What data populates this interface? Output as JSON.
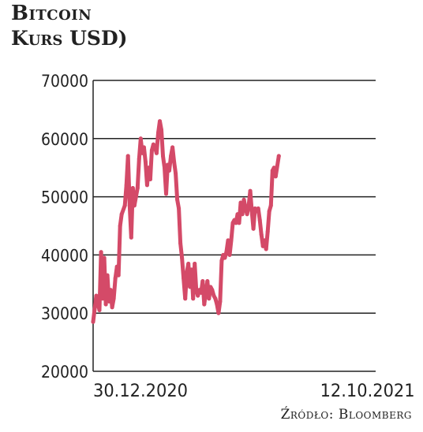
{
  "title": "Bitcoin",
  "subtitle": "Kurs USD)",
  "source": "Źródło: Bloomberg",
  "colors": {
    "line": "#d44a68",
    "grid": "#222222",
    "text": "#222222"
  },
  "chart_data": {
    "type": "line",
    "title": "Bitcoin",
    "subtitle": "Kurs USD)",
    "xlabel": "",
    "ylabel": "",
    "ylim": [
      20000,
      70000
    ],
    "yticks": [
      "20000",
      "30000",
      "40000",
      "50000",
      "60000",
      "70000"
    ],
    "xticks": [
      {
        "label": "30.12.2020",
        "x": 0
      },
      {
        "label": "12.10.2021",
        "x": 286
      }
    ],
    "grid": true,
    "series": [
      {
        "name": "",
        "points": [
          [
            0,
            28500
          ],
          [
            4,
            33000
          ],
          [
            8,
            30500
          ],
          [
            10,
            40500
          ],
          [
            12,
            32500
          ],
          [
            14,
            39500
          ],
          [
            16,
            31500
          ],
          [
            18,
            36500
          ],
          [
            20,
            32000
          ],
          [
            22,
            34000
          ],
          [
            24,
            31000
          ],
          [
            26,
            32500
          ],
          [
            28,
            36000
          ],
          [
            30,
            38000
          ],
          [
            32,
            36500
          ],
          [
            34,
            45000
          ],
          [
            36,
            47000
          ],
          [
            40,
            48500
          ],
          [
            42,
            52000
          ],
          [
            44,
            57000
          ],
          [
            46,
            48500
          ],
          [
            48,
            43000
          ],
          [
            50,
            51500
          ],
          [
            52,
            48500
          ],
          [
            54,
            50000
          ],
          [
            56,
            51500
          ],
          [
            58,
            56500
          ],
          [
            60,
            60000
          ],
          [
            62,
            57500
          ],
          [
            64,
            58500
          ],
          [
            66,
            56000
          ],
          [
            68,
            52000
          ],
          [
            70,
            55000
          ],
          [
            72,
            53000
          ],
          [
            74,
            58000
          ],
          [
            76,
            59000
          ],
          [
            78,
            58500
          ],
          [
            80,
            57500
          ],
          [
            82,
            61000
          ],
          [
            84,
            63000
          ],
          [
            86,
            61500
          ],
          [
            88,
            57000
          ],
          [
            90,
            55000
          ],
          [
            92,
            50500
          ],
          [
            94,
            55500
          ],
          [
            96,
            54500
          ],
          [
            98,
            57000
          ],
          [
            100,
            58500
          ],
          [
            102,
            56000
          ],
          [
            104,
            54000
          ],
          [
            106,
            49500
          ],
          [
            108,
            48000
          ],
          [
            110,
            42000
          ],
          [
            112,
            39500
          ],
          [
            114,
            36000
          ],
          [
            116,
            32500
          ],
          [
            118,
            37000
          ],
          [
            120,
            38500
          ],
          [
            122,
            34500
          ],
          [
            124,
            37500
          ],
          [
            126,
            32500
          ],
          [
            128,
            38500
          ],
          [
            130,
            34000
          ],
          [
            132,
            33000
          ],
          [
            134,
            34000
          ],
          [
            136,
            33500
          ],
          [
            138,
            35500
          ],
          [
            140,
            31500
          ],
          [
            142,
            33500
          ],
          [
            144,
            35500
          ],
          [
            146,
            32500
          ],
          [
            148,
            34500
          ],
          [
            150,
            34000
          ],
          [
            152,
            33000
          ],
          [
            154,
            32500
          ],
          [
            156,
            31500
          ],
          [
            158,
            30000
          ],
          [
            160,
            32000
          ],
          [
            162,
            39000
          ],
          [
            164,
            40000
          ],
          [
            166,
            39500
          ],
          [
            168,
            40500
          ],
          [
            170,
            42500
          ],
          [
            172,
            40000
          ],
          [
            174,
            42500
          ],
          [
            176,
            45500
          ],
          [
            178,
            46000
          ],
          [
            180,
            45500
          ],
          [
            182,
            47000
          ],
          [
            184,
            45500
          ],
          [
            186,
            49000
          ],
          [
            188,
            47000
          ],
          [
            190,
            49500
          ],
          [
            192,
            48000
          ],
          [
            194,
            47000
          ],
          [
            196,
            48500
          ],
          [
            198,
            51000
          ],
          [
            200,
            47500
          ],
          [
            202,
            44500
          ],
          [
            204,
            48000
          ],
          [
            206,
            47500
          ],
          [
            208,
            48000
          ],
          [
            210,
            46000
          ],
          [
            212,
            43500
          ],
          [
            214,
            41500
          ],
          [
            216,
            42500
          ],
          [
            218,
            41000
          ],
          [
            220,
            44000
          ],
          [
            222,
            47500
          ],
          [
            224,
            48500
          ],
          [
            226,
            54500
          ],
          [
            228,
            55000
          ],
          [
            230,
            53500
          ],
          [
            234,
            57000
          ]
        ]
      }
    ]
  }
}
